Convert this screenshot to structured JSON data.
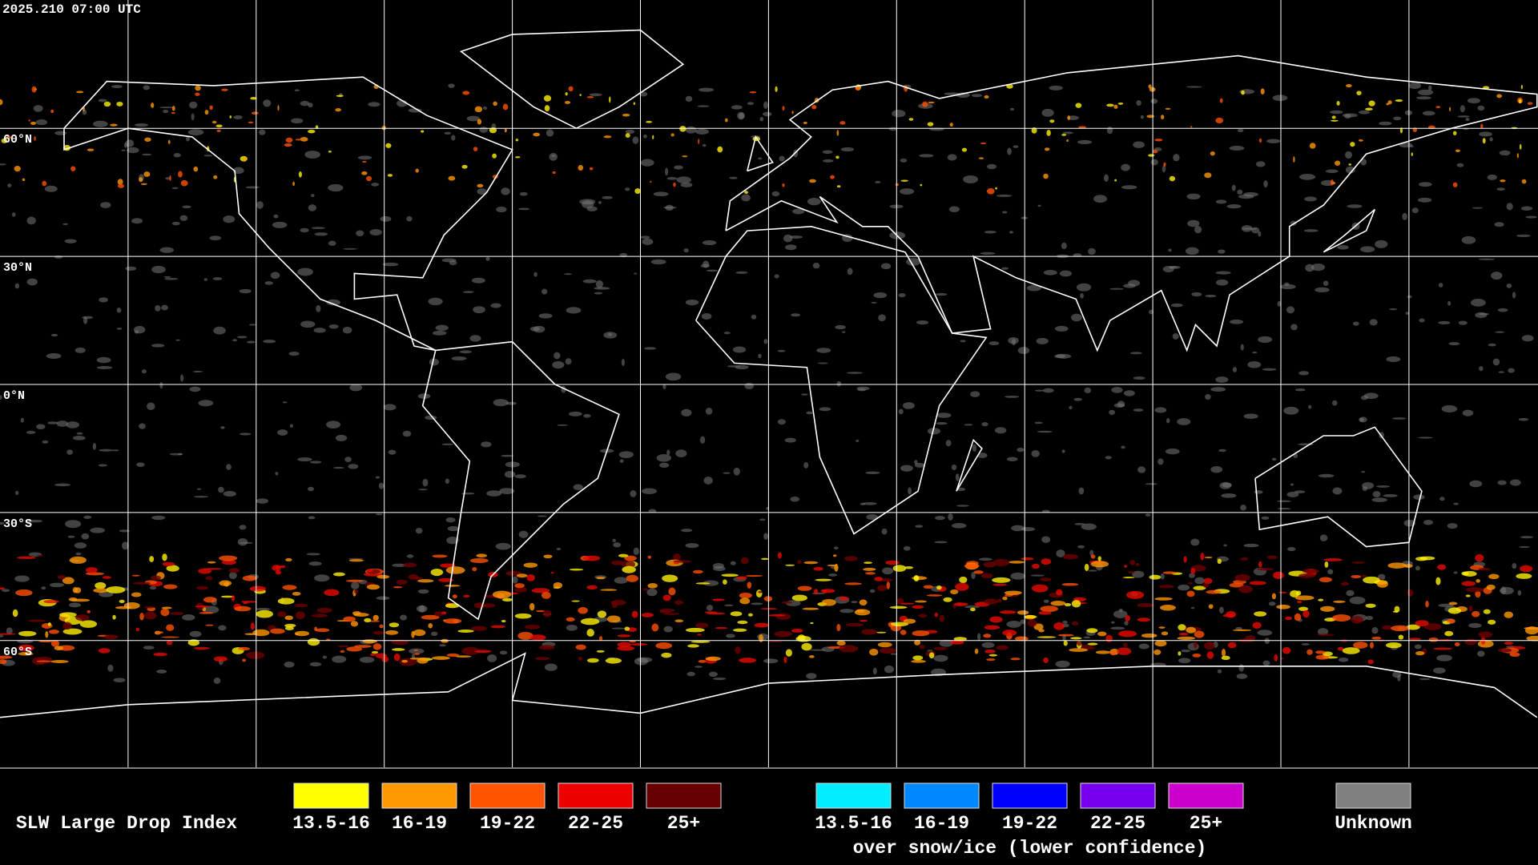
{
  "header": {
    "timestamp": "2025.210 07:00 UTC"
  },
  "map": {
    "latitude_labels": [
      "60°N",
      "30°N",
      "0°N",
      "30°S",
      "60°S"
    ]
  },
  "legend": {
    "title": "SLW Large Drop Index",
    "groups": [
      {
        "items": [
          {
            "label": "13.5-16",
            "color": "#ffff00"
          },
          {
            "label": "16-19",
            "color": "#ff9900"
          },
          {
            "label": "19-22",
            "color": "#ff5500"
          },
          {
            "label": "22-25",
            "color": "#ee0000"
          },
          {
            "label": "25+",
            "color": "#660000"
          }
        ]
      },
      {
        "items": [
          {
            "label": "13.5-16",
            "color": "#00eeff"
          },
          {
            "label": "16-19",
            "color": "#0088ff"
          },
          {
            "label": "19-22",
            "color": "#0000ff"
          },
          {
            "label": "22-25",
            "color": "#7700ee"
          },
          {
            "label": "25+",
            "color": "#cc00cc"
          }
        ],
        "caption": "over snow/ice (lower confidence)"
      },
      {
        "items": [
          {
            "label": "Unknown",
            "color": "#808080"
          }
        ]
      }
    ]
  }
}
